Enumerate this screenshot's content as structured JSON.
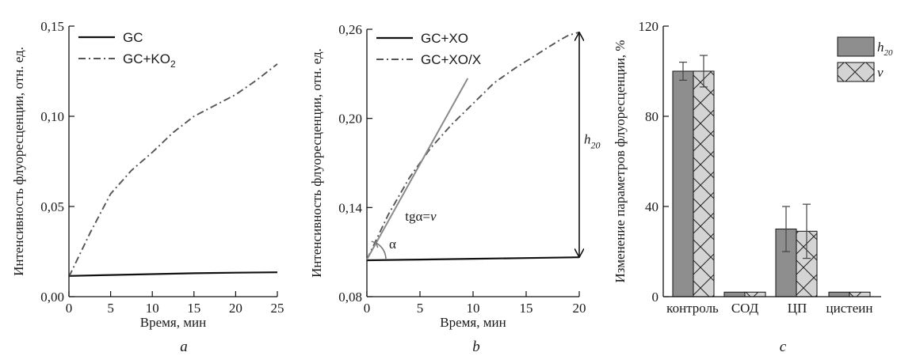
{
  "chart_data": [
    {
      "panel": "a",
      "type": "line",
      "ylabel": "Интенсивность флуоресценции, отн. ед.",
      "xlabel": "Время, мин",
      "xlim": [
        0,
        25
      ],
      "ylim": [
        0,
        0.15
      ],
      "x_ticks": [
        0,
        5,
        10,
        15,
        20,
        25
      ],
      "y_ticks": [
        0,
        0.05,
        0.1,
        0.15
      ],
      "x_tick_labels": [
        "0",
        "5",
        "10",
        "15",
        "20",
        "25"
      ],
      "y_tick_labels": [
        "0,00",
        "0,05",
        "0,10",
        "0,15"
      ],
      "legend_position": "top-left",
      "series": [
        {
          "name": "GC",
          "style": "solid",
          "color": "#111111",
          "x": [
            0,
            5,
            10,
            15,
            20,
            25
          ],
          "y": [
            0.0115,
            0.012,
            0.0125,
            0.013,
            0.0133,
            0.0135
          ]
        },
        {
          "name": "GC+KO",
          "name_subscript": "2",
          "style": "dashdot",
          "color": "#555555",
          "x": [
            0,
            2.5,
            5,
            7.5,
            10,
            12.5,
            15,
            17.5,
            20,
            22.5,
            25
          ],
          "y": [
            0.011,
            0.035,
            0.057,
            0.07,
            0.08,
            0.091,
            0.1,
            0.106,
            0.112,
            0.12,
            0.129
          ]
        }
      ]
    },
    {
      "panel": "b",
      "type": "line",
      "ylabel": "Интенсивность флуоресценции, отн. ед.",
      "xlabel": "Время, мин",
      "xlim": [
        0,
        20
      ],
      "ylim": [
        0.08,
        0.26
      ],
      "x_ticks": [
        0,
        5,
        10,
        15,
        20
      ],
      "y_ticks": [
        0.08,
        0.14,
        0.2,
        0.26
      ],
      "x_tick_labels": [
        "0",
        "5",
        "10",
        "15",
        "20"
      ],
      "y_tick_labels": [
        "0,08",
        "0,14",
        "0,20",
        "0,26"
      ],
      "legend_position": "top-left",
      "series": [
        {
          "name": "GC+XO",
          "style": "solid",
          "color": "#111111",
          "x": [
            0,
            5,
            10,
            15,
            20
          ],
          "y": [
            0.1045,
            0.105,
            0.1055,
            0.106,
            0.1065
          ]
        },
        {
          "name": "GC+XO/X",
          "style": "dashdot",
          "color": "#555555",
          "x": [
            0,
            2,
            4,
            6,
            8,
            10,
            12,
            14,
            16,
            18,
            19,
            20
          ],
          "y": [
            0.105,
            0.135,
            0.16,
            0.18,
            0.196,
            0.21,
            0.224,
            0.234,
            0.243,
            0.252,
            0.256,
            0.258
          ]
        }
      ],
      "tangent": {
        "x": [
          0,
          9.5
        ],
        "y": [
          0.105,
          0.227
        ],
        "color": "#8a8a8a"
      },
      "annotations": {
        "tangent_label": "tgα=",
        "tangent_label_var": "v",
        "angle_label": "α",
        "arrow_label": "h",
        "arrow_label_sub": "20"
      }
    },
    {
      "panel": "c",
      "type": "bar",
      "ylabel": "Изменение параметров флуоресценции, %",
      "ylim": [
        0,
        120
      ],
      "y_ticks": [
        0,
        40,
        80,
        120
      ],
      "y_tick_labels": [
        "0",
        "40",
        "80",
        "120"
      ],
      "categories": [
        "контроль",
        "СОД",
        "ЦП",
        "цистеин"
      ],
      "legend_position": "top-right",
      "series": [
        {
          "name": "h",
          "name_subscript": "20",
          "fill": "#8e8e8e",
          "values": [
            100,
            2,
            30,
            2
          ],
          "errors": [
            4,
            0,
            10,
            0
          ]
        },
        {
          "name": "v",
          "fill": "#d4d4d4",
          "hatch": "cross",
          "values": [
            100,
            2,
            29,
            2
          ],
          "errors": [
            7,
            0,
            12,
            0
          ]
        }
      ]
    }
  ],
  "panel_letters": [
    "a",
    "b",
    "c"
  ]
}
